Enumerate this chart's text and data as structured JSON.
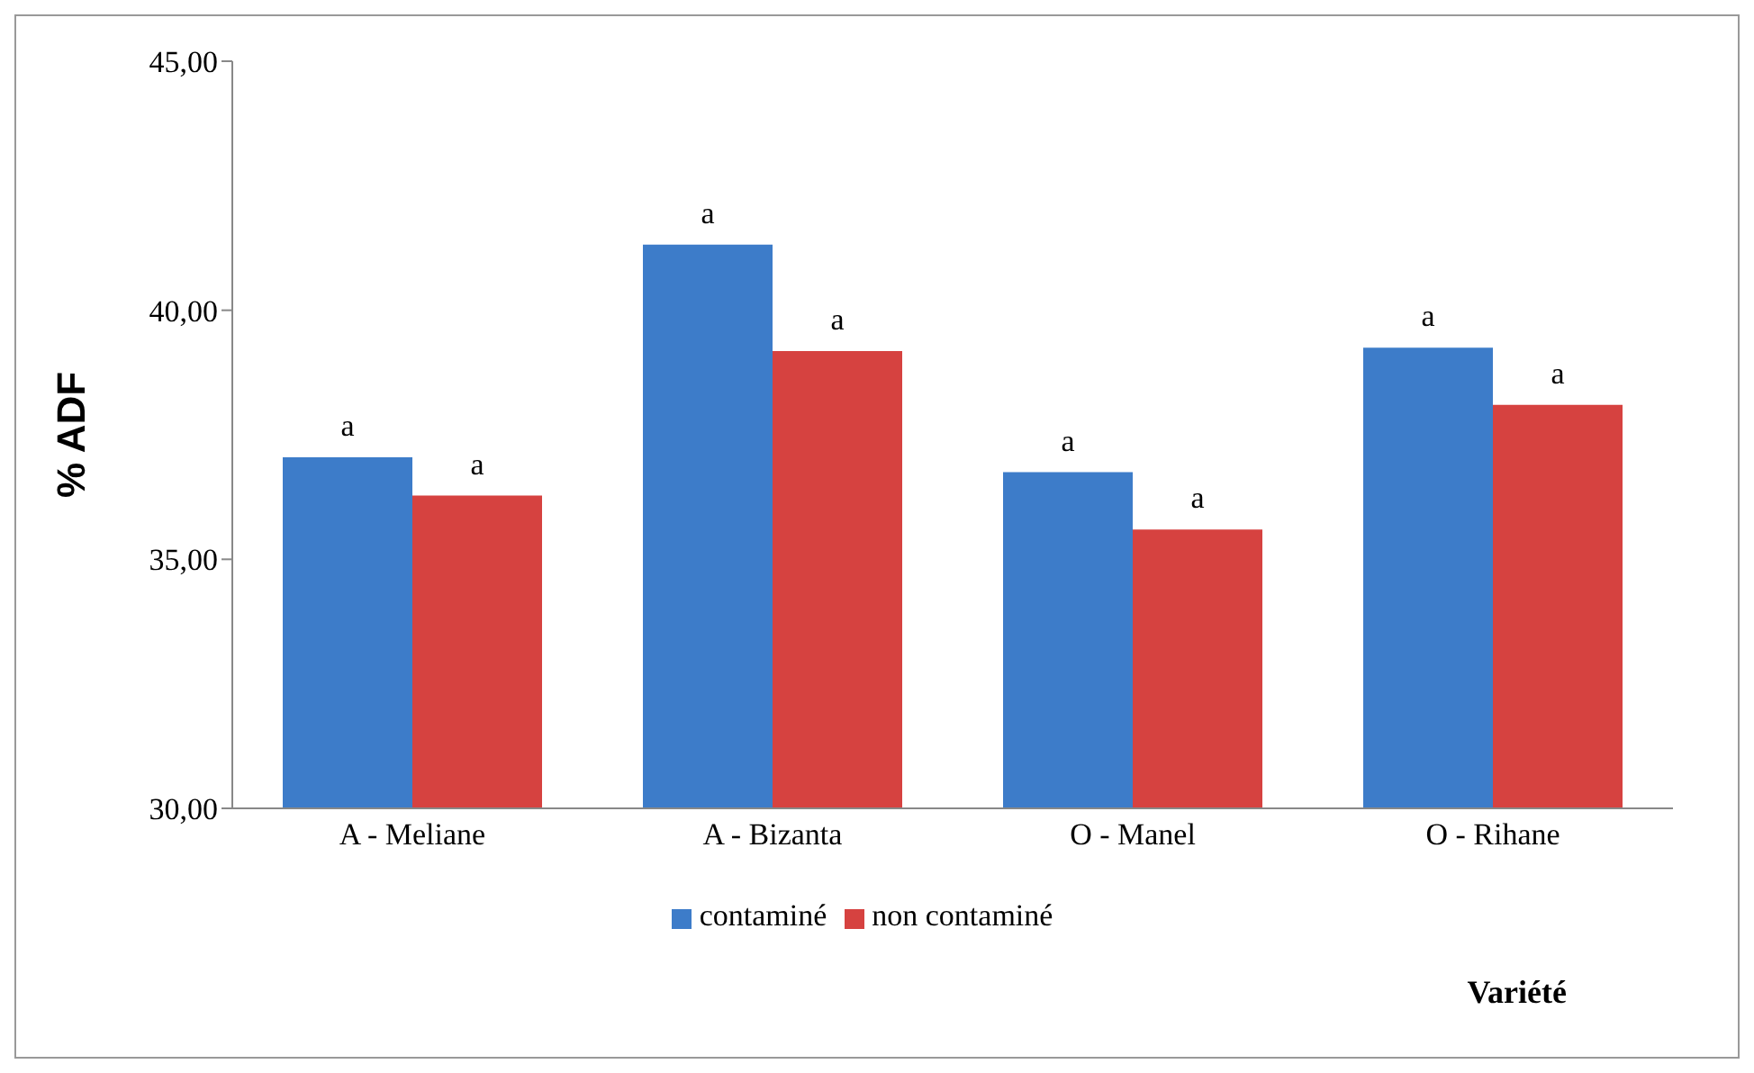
{
  "chart_data": {
    "type": "bar",
    "ylabel": "% ADF",
    "xlabel": "Variété",
    "categories": [
      "A - Meliane",
      "A - Bizanta",
      "O - Manel",
      "O - Rihane"
    ],
    "series": [
      {
        "name": "contaminé",
        "color": "#3d7cc9",
        "values": [
          37.05,
          41.32,
          36.75,
          39.25
        ],
        "value_labels": [
          "a",
          "a",
          "a",
          "a"
        ]
      },
      {
        "name": "non contaminé",
        "color": "#d64240",
        "values": [
          36.28,
          39.18,
          35.6,
          38.1
        ],
        "value_labels": [
          "a",
          "a",
          "a",
          "a"
        ]
      }
    ],
    "ylim": [
      30,
      45
    ],
    "yticks": [
      {
        "value": 30,
        "label": "30,00"
      },
      {
        "value": 35,
        "label": "35,00"
      },
      {
        "value": 40,
        "label": "40,00"
      },
      {
        "value": 45,
        "label": "45,00"
      }
    ],
    "grid": false,
    "legend": "bottom"
  }
}
